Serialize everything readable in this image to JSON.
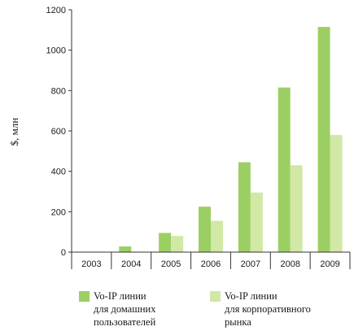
{
  "chart_data": {
    "type": "bar",
    "title": "",
    "xlabel": "",
    "ylabel": "$, млн",
    "ylim": [
      0,
      1200
    ],
    "yticks": [
      0,
      200,
      400,
      600,
      800,
      1000,
      1200
    ],
    "categories": [
      "2003",
      "2004",
      "2005",
      "2006",
      "2007",
      "2008",
      "2009"
    ],
    "series": [
      {
        "name": "Vo-IP линии\nдля домашних\nпользователей",
        "color": "#9ccf63",
        "values": [
          0,
          28,
          95,
          225,
          445,
          815,
          1115
        ]
      },
      {
        "name": "Vo-IP линии\nдля корпоративного\nрынка",
        "color": "#d2e8a6",
        "values": [
          0,
          0,
          80,
          155,
          295,
          430,
          580
        ]
      }
    ],
    "grid": false,
    "legend": "bottom"
  }
}
